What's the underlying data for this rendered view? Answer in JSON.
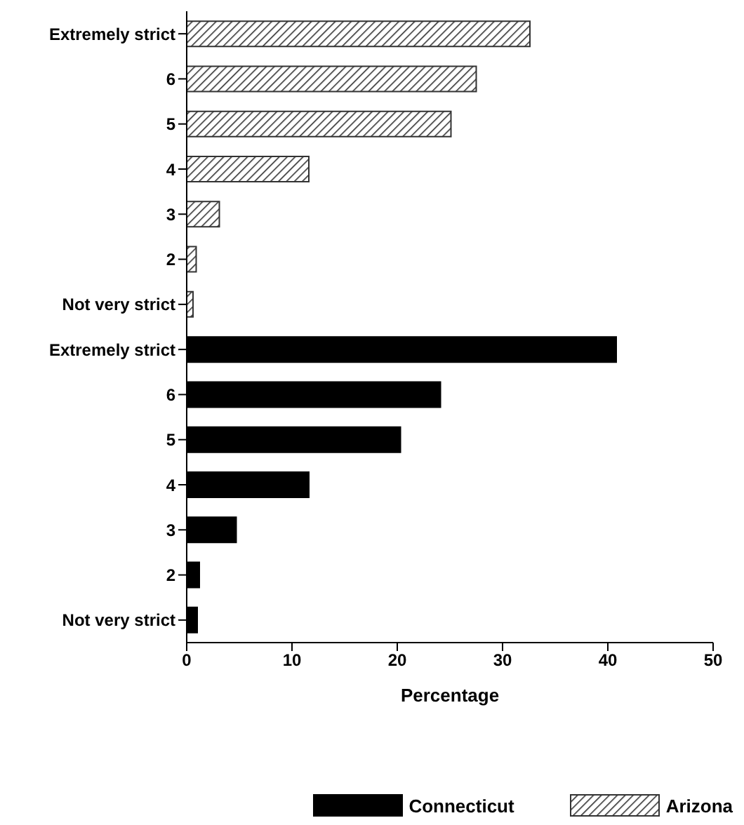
{
  "chart_data": {
    "type": "bar",
    "orientation": "horizontal",
    "xlabel": "Percentage",
    "categories": [
      "Extremely strict",
      "6",
      "5",
      "4",
      "3",
      "2",
      "Not very strict",
      "Extremely strict",
      "6",
      "5",
      "4",
      "3",
      "2",
      "Not very strict"
    ],
    "series": [
      {
        "name": "Connecticut",
        "color": "#000000",
        "values": [
          null,
          null,
          null,
          null,
          null,
          null,
          null,
          40.8,
          24.1,
          20.3,
          11.6,
          4.7,
          1.2,
          1.0
        ]
      },
      {
        "name": "Arizona",
        "color": "#333333",
        "values": [
          32.6,
          27.5,
          25.1,
          11.6,
          3.1,
          0.9,
          0.6,
          null,
          null,
          null,
          null,
          null,
          null,
          null
        ]
      }
    ],
    "xlim": [
      0,
      50
    ],
    "xticks": [
      0,
      10,
      20,
      30,
      40,
      50
    ],
    "grid": false,
    "legend": "bottom"
  }
}
